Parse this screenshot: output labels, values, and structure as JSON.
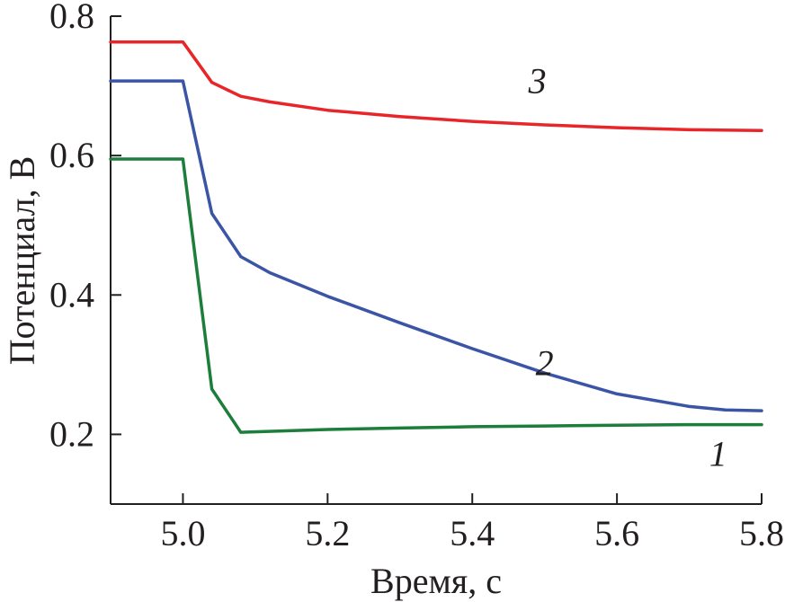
{
  "chart_data": {
    "type": "line",
    "title": "",
    "xlabel": "Время, с",
    "ylabel": "Потенциал, В",
    "xlim": [
      4.9,
      5.8
    ],
    "ylim": [
      0.1,
      0.8
    ],
    "grid": false,
    "xticks": [
      {
        "value": 5.0,
        "label": "5.0"
      },
      {
        "value": 5.2,
        "label": "5.2"
      },
      {
        "value": 5.4,
        "label": "5.4"
      },
      {
        "value": 5.6,
        "label": "5.6"
      },
      {
        "value": 5.8,
        "label": "5.8"
      }
    ],
    "yticks": [
      {
        "value": 0.2,
        "label": "0.2"
      },
      {
        "value": 0.4,
        "label": "0.4"
      },
      {
        "value": 0.6,
        "label": "0.6"
      },
      {
        "value": 0.8,
        "label": "0.8"
      }
    ],
    "series": [
      {
        "name": "1",
        "color": "#1d7d3a",
        "label_at": [
          5.74,
          0.155
        ],
        "points": [
          [
            4.9,
            0.595
          ],
          [
            5.0,
            0.595
          ],
          [
            5.04,
            0.265
          ],
          [
            5.08,
            0.203
          ],
          [
            5.2,
            0.207
          ],
          [
            5.3,
            0.209
          ],
          [
            5.4,
            0.211
          ],
          [
            5.5,
            0.212
          ],
          [
            5.6,
            0.213
          ],
          [
            5.7,
            0.214
          ],
          [
            5.8,
            0.214
          ]
        ]
      },
      {
        "name": "2",
        "color": "#3b55a6",
        "label_at": [
          5.5,
          0.285
        ],
        "points": [
          [
            4.9,
            0.707
          ],
          [
            5.0,
            0.707
          ],
          [
            5.04,
            0.517
          ],
          [
            5.08,
            0.455
          ],
          [
            5.12,
            0.432
          ],
          [
            5.2,
            0.398
          ],
          [
            5.3,
            0.36
          ],
          [
            5.4,
            0.323
          ],
          [
            5.5,
            0.288
          ],
          [
            5.6,
            0.258
          ],
          [
            5.7,
            0.24
          ],
          [
            5.75,
            0.235
          ],
          [
            5.8,
            0.234
          ]
        ]
      },
      {
        "name": "3",
        "color": "#e8262a",
        "label_at": [
          5.49,
          0.69
        ],
        "points": [
          [
            4.9,
            0.763
          ],
          [
            5.0,
            0.763
          ],
          [
            5.04,
            0.705
          ],
          [
            5.08,
            0.685
          ],
          [
            5.12,
            0.677
          ],
          [
            5.2,
            0.665
          ],
          [
            5.3,
            0.656
          ],
          [
            5.4,
            0.649
          ],
          [
            5.5,
            0.644
          ],
          [
            5.6,
            0.64
          ],
          [
            5.7,
            0.637
          ],
          [
            5.8,
            0.636
          ]
        ]
      }
    ]
  }
}
